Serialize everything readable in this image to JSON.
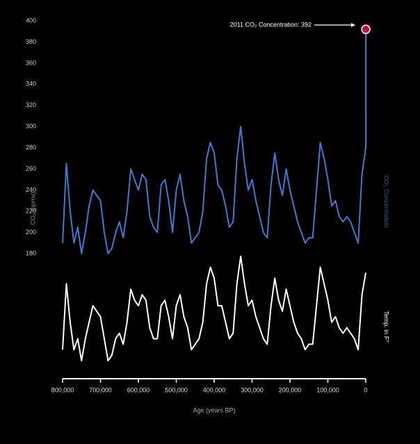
{
  "chart_data": {
    "type": "line",
    "annotation": "2011 CO₂ Concentration: 392",
    "xlabel": "Age (years BP)",
    "ylabel": "CO₂ (ppmv)",
    "x": [
      800000,
      790000,
      780000,
      770000,
      760000,
      750000,
      740000,
      730000,
      720000,
      710000,
      700000,
      690000,
      680000,
      670000,
      660000,
      650000,
      640000,
      630000,
      620000,
      610000,
      600000,
      590000,
      580000,
      570000,
      560000,
      550000,
      540000,
      530000,
      520000,
      510000,
      500000,
      490000,
      480000,
      470000,
      460000,
      450000,
      440000,
      430000,
      420000,
      410000,
      400000,
      390000,
      380000,
      370000,
      360000,
      350000,
      340000,
      330000,
      320000,
      310000,
      300000,
      290000,
      280000,
      270000,
      260000,
      250000,
      240000,
      230000,
      220000,
      210000,
      200000,
      190000,
      180000,
      170000,
      160000,
      150000,
      140000,
      130000,
      120000,
      110000,
      100000,
      90000,
      80000,
      70000,
      60000,
      50000,
      40000,
      30000,
      20000,
      10000,
      0,
      -61
    ],
    "series": [
      {
        "name": "CO₂ Concentration",
        "color": "#3a7bd5",
        "values": [
          190,
          265,
          220,
          190,
          205,
          180,
          200,
          225,
          240,
          235,
          230,
          200,
          180,
          185,
          200,
          210,
          195,
          220,
          260,
          250,
          240,
          255,
          250,
          215,
          205,
          200,
          245,
          250,
          230,
          200,
          240,
          255,
          230,
          215,
          190,
          195,
          200,
          220,
          270,
          285,
          275,
          245,
          240,
          225,
          205,
          210,
          270,
          300,
          265,
          240,
          250,
          230,
          215,
          200,
          195,
          245,
          275,
          250,
          235,
          260,
          240,
          225,
          210,
          200,
          190,
          195,
          195,
          240,
          285,
          270,
          250,
          225,
          230,
          215,
          210,
          215,
          210,
          200,
          190,
          255,
          280,
          392
        ]
      },
      {
        "name": "Temp. in F°",
        "color": "#ffffff",
        "axis": "y2",
        "values": [
          -10,
          2,
          -5,
          -10,
          -8,
          -12,
          -8,
          -5,
          -2,
          -3,
          -4,
          -8,
          -12,
          -11,
          -8,
          -7,
          -9,
          -5,
          1,
          -1,
          -2,
          0,
          -1,
          -6,
          -8,
          -8,
          -2,
          -1,
          -4,
          -8,
          -2,
          0,
          -4,
          -6,
          -10,
          -9,
          -8,
          -5,
          2,
          5,
          3,
          -2,
          -2,
          -5,
          -8,
          -7,
          2,
          7,
          2,
          -2,
          -1,
          -4,
          -6,
          -8,
          -9,
          -2,
          3,
          -1,
          -3,
          1,
          -2,
          -5,
          -7,
          -8,
          -10,
          -9,
          -9,
          -2,
          5,
          2,
          -1,
          -5,
          -4,
          -6,
          -7,
          -6,
          -7,
          -8,
          -10,
          0,
          4,
          null
        ]
      }
    ],
    "xlim": [
      800000,
      0
    ],
    "xticks": [
      {
        "value": 800000,
        "label": "800,000"
      },
      {
        "value": 700000,
        "label": "700,000"
      },
      {
        "value": 600000,
        "label": "600,000"
      },
      {
        "value": 500000,
        "label": "500,000"
      },
      {
        "value": 400000,
        "label": "400,000"
      },
      {
        "value": 300000,
        "label": "300,000"
      },
      {
        "value": 200000,
        "label": "200,000"
      },
      {
        "value": 100000,
        "label": "100,000"
      },
      0
    ],
    "ylim": [
      180,
      400
    ],
    "yticks": [
      180,
      200,
      220,
      240,
      260,
      280,
      300,
      320,
      340,
      360,
      380,
      400
    ],
    "y2lim": [
      -14,
      10
    ],
    "highlight_color": "#c0143c"
  }
}
